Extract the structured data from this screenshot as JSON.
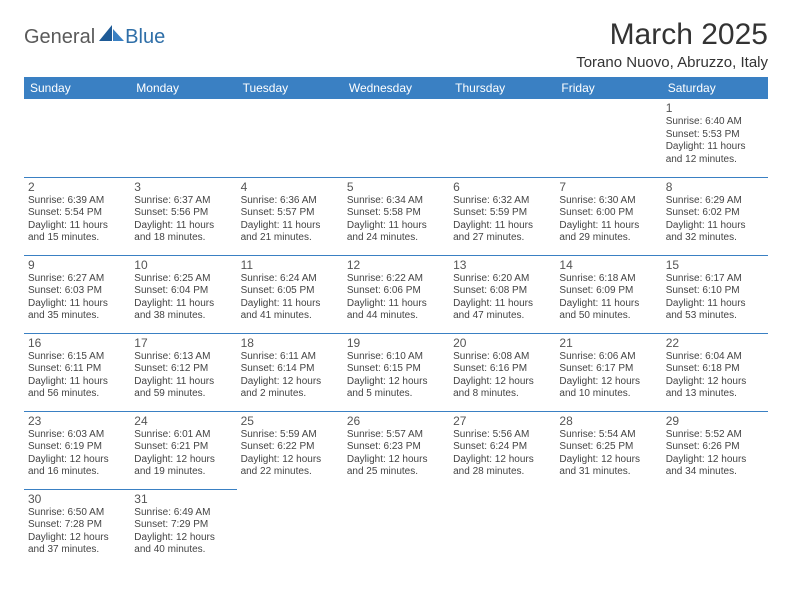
{
  "logo": {
    "text_dark": "General",
    "text_blue": "Blue"
  },
  "title": "March 2025",
  "location": "Torano Nuovo, Abruzzo, Italy",
  "colors": {
    "header_bg": "#3a80c3",
    "header_text": "#ffffff",
    "border": "#3a80c3",
    "text": "#333333",
    "cell_text": "#444444",
    "logo_dark": "#5a5a5a",
    "logo_blue": "#2f6fa8"
  },
  "day_headers": [
    "Sunday",
    "Monday",
    "Tuesday",
    "Wednesday",
    "Thursday",
    "Friday",
    "Saturday"
  ],
  "weeks": [
    [
      null,
      null,
      null,
      null,
      null,
      null,
      {
        "d": "1",
        "sr": "6:40 AM",
        "ss": "5:53 PM",
        "dl": "11 hours and 12 minutes."
      }
    ],
    [
      {
        "d": "2",
        "sr": "6:39 AM",
        "ss": "5:54 PM",
        "dl": "11 hours and 15 minutes."
      },
      {
        "d": "3",
        "sr": "6:37 AM",
        "ss": "5:56 PM",
        "dl": "11 hours and 18 minutes."
      },
      {
        "d": "4",
        "sr": "6:36 AM",
        "ss": "5:57 PM",
        "dl": "11 hours and 21 minutes."
      },
      {
        "d": "5",
        "sr": "6:34 AM",
        "ss": "5:58 PM",
        "dl": "11 hours and 24 minutes."
      },
      {
        "d": "6",
        "sr": "6:32 AM",
        "ss": "5:59 PM",
        "dl": "11 hours and 27 minutes."
      },
      {
        "d": "7",
        "sr": "6:30 AM",
        "ss": "6:00 PM",
        "dl": "11 hours and 29 minutes."
      },
      {
        "d": "8",
        "sr": "6:29 AM",
        "ss": "6:02 PM",
        "dl": "11 hours and 32 minutes."
      }
    ],
    [
      {
        "d": "9",
        "sr": "6:27 AM",
        "ss": "6:03 PM",
        "dl": "11 hours and 35 minutes."
      },
      {
        "d": "10",
        "sr": "6:25 AM",
        "ss": "6:04 PM",
        "dl": "11 hours and 38 minutes."
      },
      {
        "d": "11",
        "sr": "6:24 AM",
        "ss": "6:05 PM",
        "dl": "11 hours and 41 minutes."
      },
      {
        "d": "12",
        "sr": "6:22 AM",
        "ss": "6:06 PM",
        "dl": "11 hours and 44 minutes."
      },
      {
        "d": "13",
        "sr": "6:20 AM",
        "ss": "6:08 PM",
        "dl": "11 hours and 47 minutes."
      },
      {
        "d": "14",
        "sr": "6:18 AM",
        "ss": "6:09 PM",
        "dl": "11 hours and 50 minutes."
      },
      {
        "d": "15",
        "sr": "6:17 AM",
        "ss": "6:10 PM",
        "dl": "11 hours and 53 minutes."
      }
    ],
    [
      {
        "d": "16",
        "sr": "6:15 AM",
        "ss": "6:11 PM",
        "dl": "11 hours and 56 minutes."
      },
      {
        "d": "17",
        "sr": "6:13 AM",
        "ss": "6:12 PM",
        "dl": "11 hours and 59 minutes."
      },
      {
        "d": "18",
        "sr": "6:11 AM",
        "ss": "6:14 PM",
        "dl": "12 hours and 2 minutes."
      },
      {
        "d": "19",
        "sr": "6:10 AM",
        "ss": "6:15 PM",
        "dl": "12 hours and 5 minutes."
      },
      {
        "d": "20",
        "sr": "6:08 AM",
        "ss": "6:16 PM",
        "dl": "12 hours and 8 minutes."
      },
      {
        "d": "21",
        "sr": "6:06 AM",
        "ss": "6:17 PM",
        "dl": "12 hours and 10 minutes."
      },
      {
        "d": "22",
        "sr": "6:04 AM",
        "ss": "6:18 PM",
        "dl": "12 hours and 13 minutes."
      }
    ],
    [
      {
        "d": "23",
        "sr": "6:03 AM",
        "ss": "6:19 PM",
        "dl": "12 hours and 16 minutes."
      },
      {
        "d": "24",
        "sr": "6:01 AM",
        "ss": "6:21 PM",
        "dl": "12 hours and 19 minutes."
      },
      {
        "d": "25",
        "sr": "5:59 AM",
        "ss": "6:22 PM",
        "dl": "12 hours and 22 minutes."
      },
      {
        "d": "26",
        "sr": "5:57 AM",
        "ss": "6:23 PM",
        "dl": "12 hours and 25 minutes."
      },
      {
        "d": "27",
        "sr": "5:56 AM",
        "ss": "6:24 PM",
        "dl": "12 hours and 28 minutes."
      },
      {
        "d": "28",
        "sr": "5:54 AM",
        "ss": "6:25 PM",
        "dl": "12 hours and 31 minutes."
      },
      {
        "d": "29",
        "sr": "5:52 AM",
        "ss": "6:26 PM",
        "dl": "12 hours and 34 minutes."
      }
    ],
    [
      {
        "d": "30",
        "sr": "6:50 AM",
        "ss": "7:28 PM",
        "dl": "12 hours and 37 minutes."
      },
      {
        "d": "31",
        "sr": "6:49 AM",
        "ss": "7:29 PM",
        "dl": "12 hours and 40 minutes."
      },
      null,
      null,
      null,
      null,
      null
    ]
  ],
  "labels": {
    "sunrise": "Sunrise:",
    "sunset": "Sunset:",
    "daylight": "Daylight:"
  }
}
